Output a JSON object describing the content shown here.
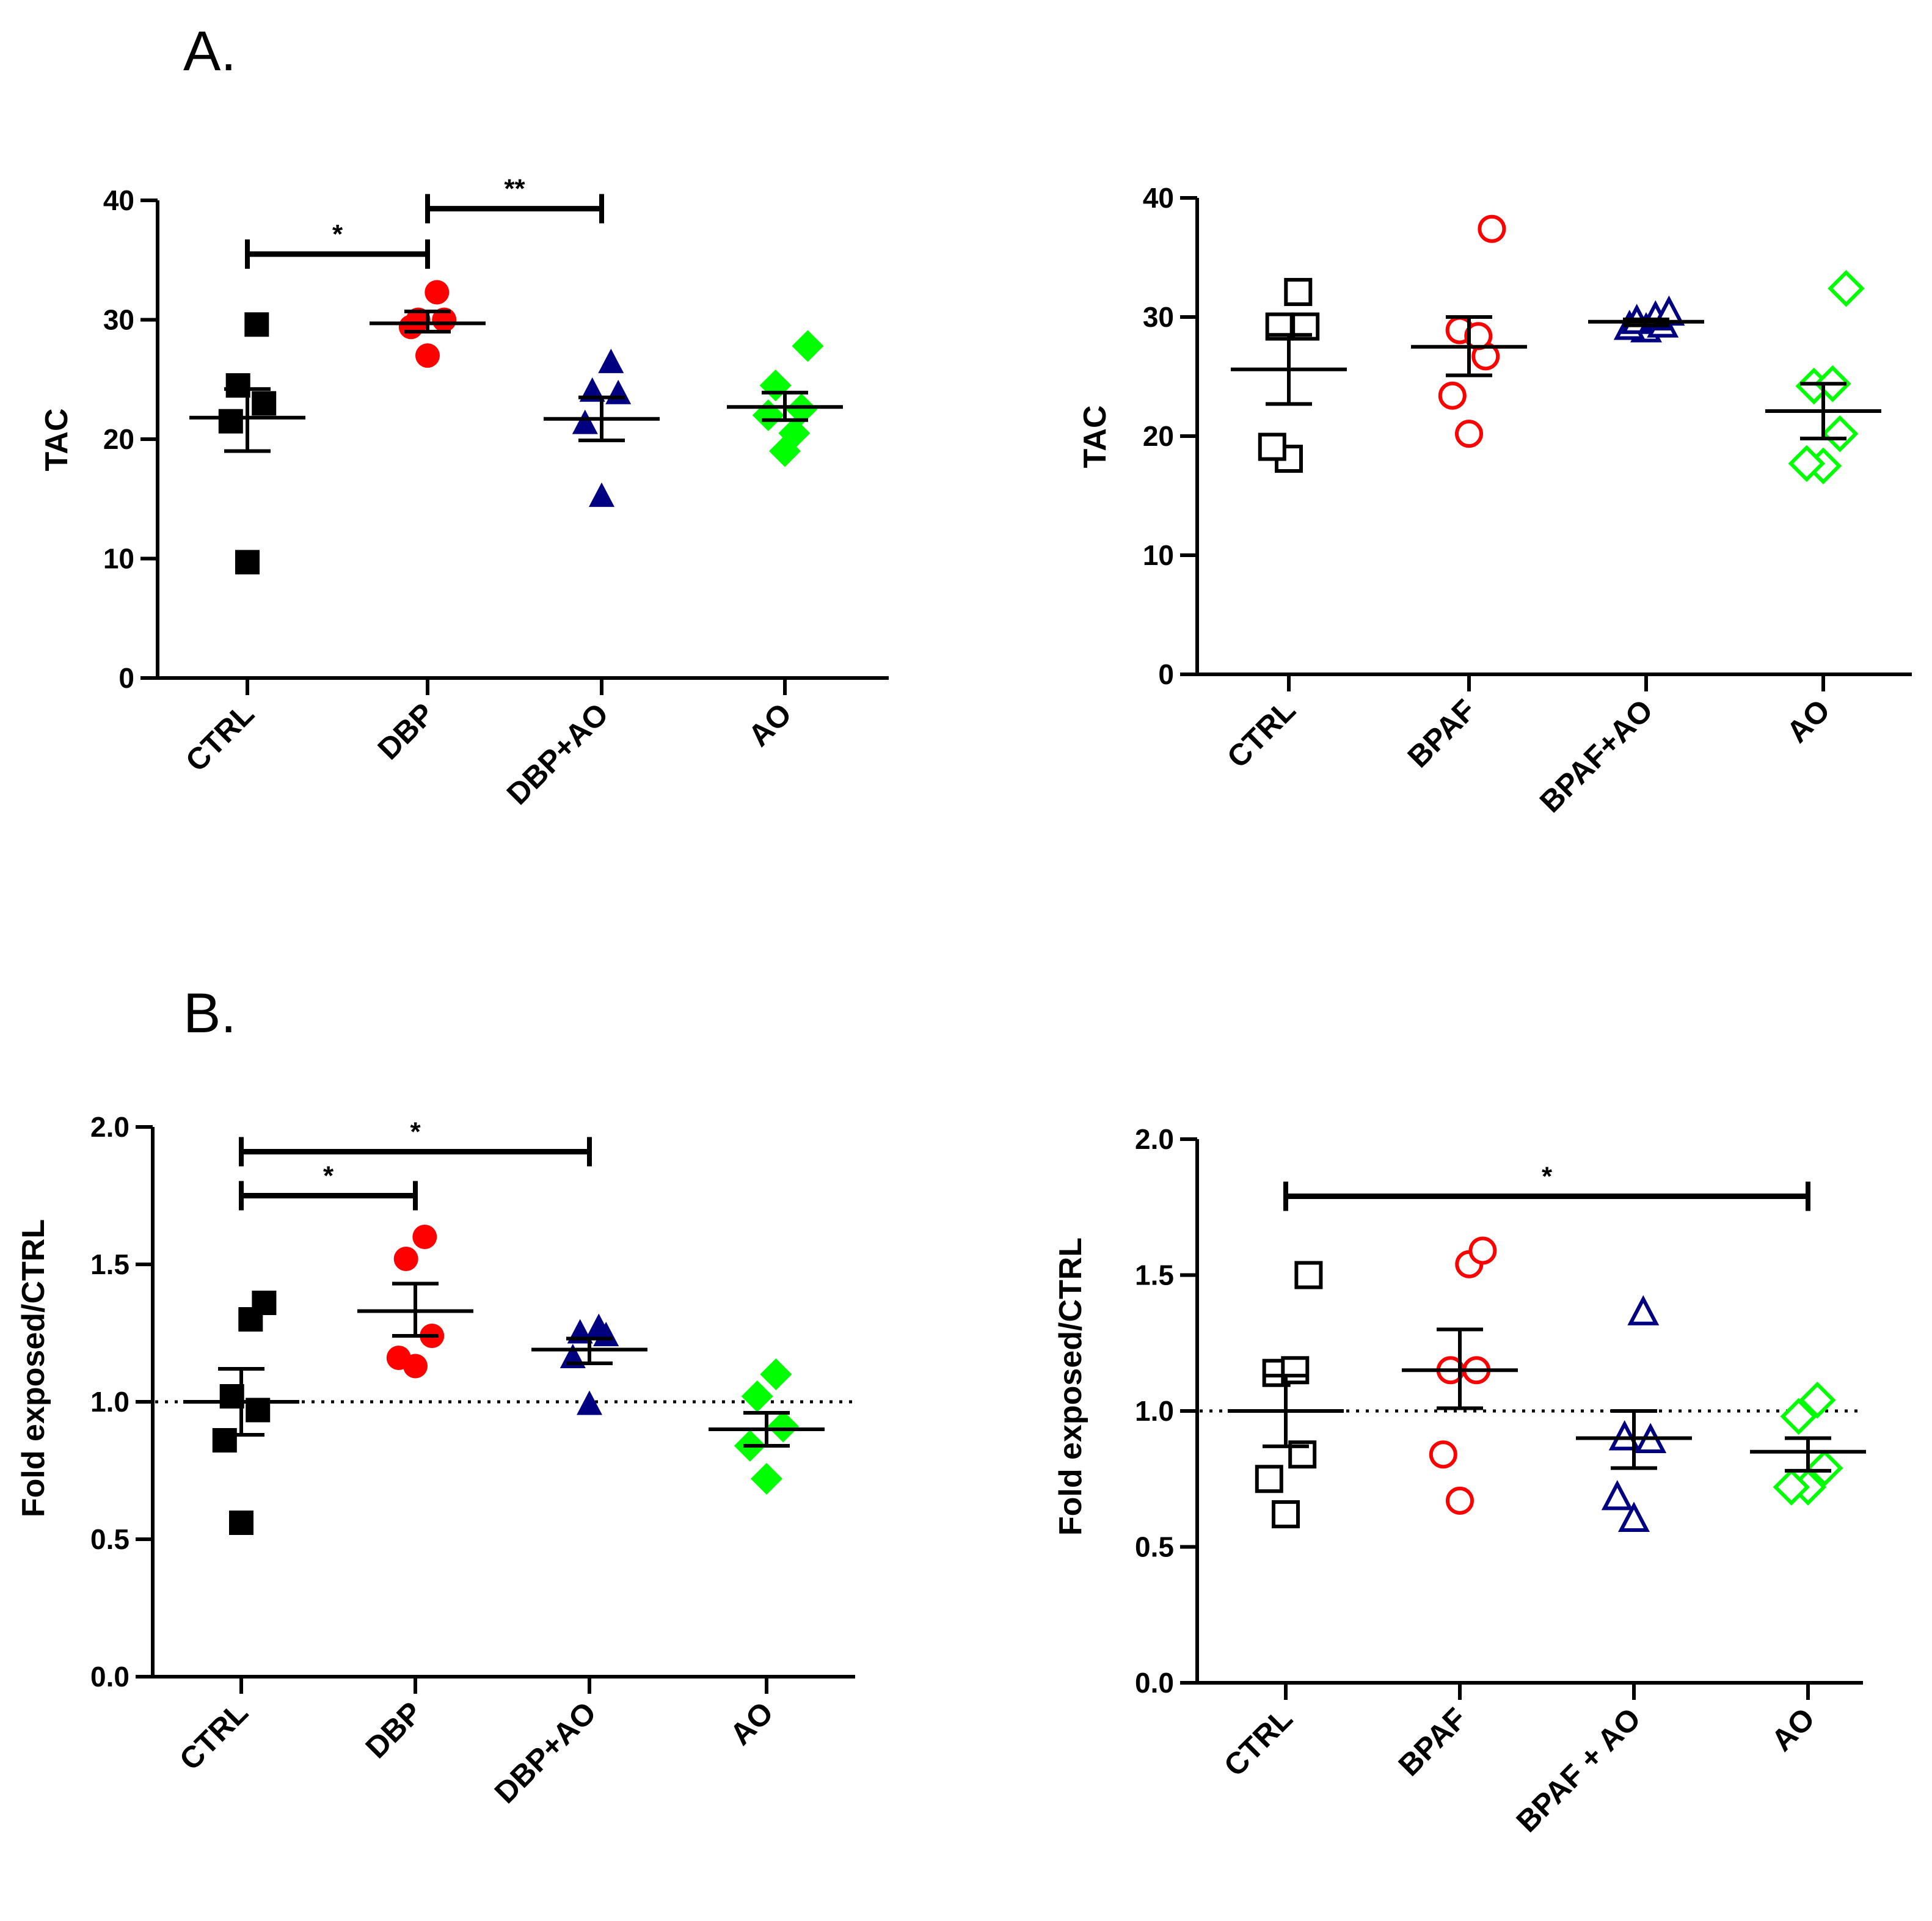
{
  "panels": {
    "a": "A.",
    "b": "B."
  },
  "chart_data": [
    {
      "id": "A-left",
      "type": "scatter",
      "ylabel": "TAC",
      "ylim": [
        0,
        40
      ],
      "yticks": [
        "0",
        "10",
        "20",
        "30",
        "40"
      ],
      "categories": [
        "CTRL",
        "DBP",
        "DBP+AO",
        "AO"
      ],
      "marker_fill": "filled",
      "reference_line": null,
      "groups": [
        {
          "name": "CTRL",
          "marker": "square",
          "color": "#000000",
          "points": [
            9.7,
            21.5,
            23.0,
            24.5,
            29.6
          ],
          "mean": 21.8,
          "sem_low": 19.0,
          "sem_high": 24.2
        },
        {
          "name": "DBP",
          "marker": "circle",
          "color": "#ff0000",
          "points": [
            27.0,
            29.4,
            30.0,
            30.0,
            32.3
          ],
          "mean": 29.7,
          "sem_low": 29.0,
          "sem_high": 30.7
        },
        {
          "name": "DBP+AO",
          "marker": "triangle",
          "color": "#000080",
          "points": [
            15.2,
            21.3,
            23.8,
            24.0,
            26.4
          ],
          "mean": 21.7,
          "sem_low": 19.9,
          "sem_high": 23.5
        },
        {
          "name": "AO",
          "marker": "diamond",
          "color": "#00ff00",
          "points": [
            19.0,
            22.0,
            22.5,
            24.5,
            20.5,
            27.8
          ],
          "mean": 22.7,
          "sem_low": 21.6,
          "sem_high": 23.9
        }
      ],
      "significance": [
        {
          "from": "CTRL",
          "to": "DBP",
          "y": 35.5,
          "label": "*"
        },
        {
          "from": "DBP",
          "to": "DBP+AO",
          "y": 39.3,
          "label": "**"
        }
      ]
    },
    {
      "id": "A-right",
      "type": "scatter",
      "ylabel": "TAC",
      "ylim": [
        0,
        40
      ],
      "yticks": [
        "0",
        "10",
        "20",
        "30",
        "40"
      ],
      "categories": [
        "CTRL",
        "BPAF",
        "BPAF+AO",
        "AO"
      ],
      "marker_fill": "open",
      "reference_line": null,
      "groups": [
        {
          "name": "CTRL",
          "marker": "square",
          "color": "#000000",
          "points": [
            18.1,
            19.1,
            29.2,
            29.2,
            32.1
          ],
          "mean": 25.6,
          "sem_low": 22.7,
          "sem_high": 28.5
        },
        {
          "name": "BPAF",
          "marker": "circle",
          "color": "#ff0000",
          "points": [
            20.2,
            23.4,
            26.7,
            28.9,
            28.4,
            37.4
          ],
          "mean": 27.5,
          "sem_low": 25.1,
          "sem_high": 30.0
        },
        {
          "name": "BPAF+AO",
          "marker": "triangle",
          "color": "#000080",
          "points": [
            28.9,
            29.1,
            29.3,
            29.6,
            29.9,
            30.3
          ],
          "mean": 29.6,
          "sem_low": 29.3,
          "sem_high": 29.8
        },
        {
          "name": "AO",
          "marker": "diamond",
          "color": "#00ff00",
          "points": [
            17.5,
            17.7,
            20.2,
            24.2,
            24.4,
            32.4
          ],
          "mean": 22.1,
          "sem_low": 19.8,
          "sem_high": 24.4
        }
      ],
      "significance": []
    },
    {
      "id": "B-left",
      "type": "scatter",
      "ylabel": "Fold exposed/CTRL",
      "ylim": [
        0,
        2
      ],
      "yticks": [
        "0.0",
        "0.5",
        "1.0",
        "1.5",
        "2.0"
      ],
      "categories": [
        "CTRL",
        "DBP",
        "DBP+AO",
        "AO"
      ],
      "marker_fill": "filled",
      "reference_line": 1.0,
      "groups": [
        {
          "name": "CTRL",
          "marker": "square",
          "color": "#000000",
          "points": [
            0.56,
            0.86,
            0.97,
            1.02,
            1.3,
            1.36
          ],
          "mean": 1.0,
          "sem_low": 0.88,
          "sem_high": 1.12
        },
        {
          "name": "DBP",
          "marker": "circle",
          "color": "#ff0000",
          "points": [
            1.13,
            1.16,
            1.24,
            1.52,
            1.6
          ],
          "mean": 1.33,
          "sem_low": 1.24,
          "sem_high": 1.43
        },
        {
          "name": "DBP+AO",
          "marker": "triangle",
          "color": "#000080",
          "points": [
            0.99,
            1.16,
            1.24,
            1.25,
            1.27
          ],
          "mean": 1.19,
          "sem_low": 1.14,
          "sem_high": 1.23
        },
        {
          "name": "AO",
          "marker": "diamond",
          "color": "#00ff00",
          "points": [
            0.72,
            0.84,
            0.91,
            1.02,
            1.1
          ],
          "mean": 0.9,
          "sem_low": 0.84,
          "sem_high": 0.96
        }
      ],
      "significance": [
        {
          "from": "CTRL",
          "to": "DBP+AO",
          "y": 1.91,
          "label": "*"
        },
        {
          "from": "CTRL",
          "to": "DBP",
          "y": 1.75,
          "label": "*"
        }
      ]
    },
    {
      "id": "B-right",
      "type": "scatter",
      "ylabel": "Fold exposed/CTRL",
      "ylim": [
        0,
        2
      ],
      "yticks": [
        "0.0",
        "0.5",
        "1.0",
        "1.5",
        "2.0"
      ],
      "categories": [
        "CTRL",
        "BPAF",
        "BPAF + AO",
        "AO"
      ],
      "marker_fill": "open",
      "reference_line": 1.0,
      "groups": [
        {
          "name": "CTRL",
          "marker": "square",
          "color": "#000000",
          "points": [
            0.62,
            0.75,
            0.84,
            1.14,
            1.15,
            1.5
          ],
          "mean": 1.0,
          "sem_low": 0.87,
          "sem_high": 1.13
        },
        {
          "name": "BPAF",
          "marker": "circle",
          "color": "#ff0000",
          "points": [
            0.67,
            0.84,
            1.15,
            1.15,
            1.54,
            1.59
          ],
          "mean": 1.15,
          "sem_low": 1.01,
          "sem_high": 1.3
        },
        {
          "name": "BPAF + AO",
          "marker": "triangle",
          "color": "#000080",
          "points": [
            0.6,
            0.68,
            0.89,
            0.9,
            1.36
          ],
          "mean": 0.9,
          "sem_low": 0.79,
          "sem_high": 1.0
        },
        {
          "name": "AO",
          "marker": "diamond",
          "color": "#00ff00",
          "points": [
            0.72,
            0.72,
            0.79,
            0.98,
            1.04
          ],
          "mean": 0.85,
          "sem_low": 0.78,
          "sem_high": 0.9
        }
      ],
      "significance": [
        {
          "from": "CTRL",
          "to": "AO",
          "y": 1.79,
          "label": "*"
        }
      ]
    }
  ]
}
